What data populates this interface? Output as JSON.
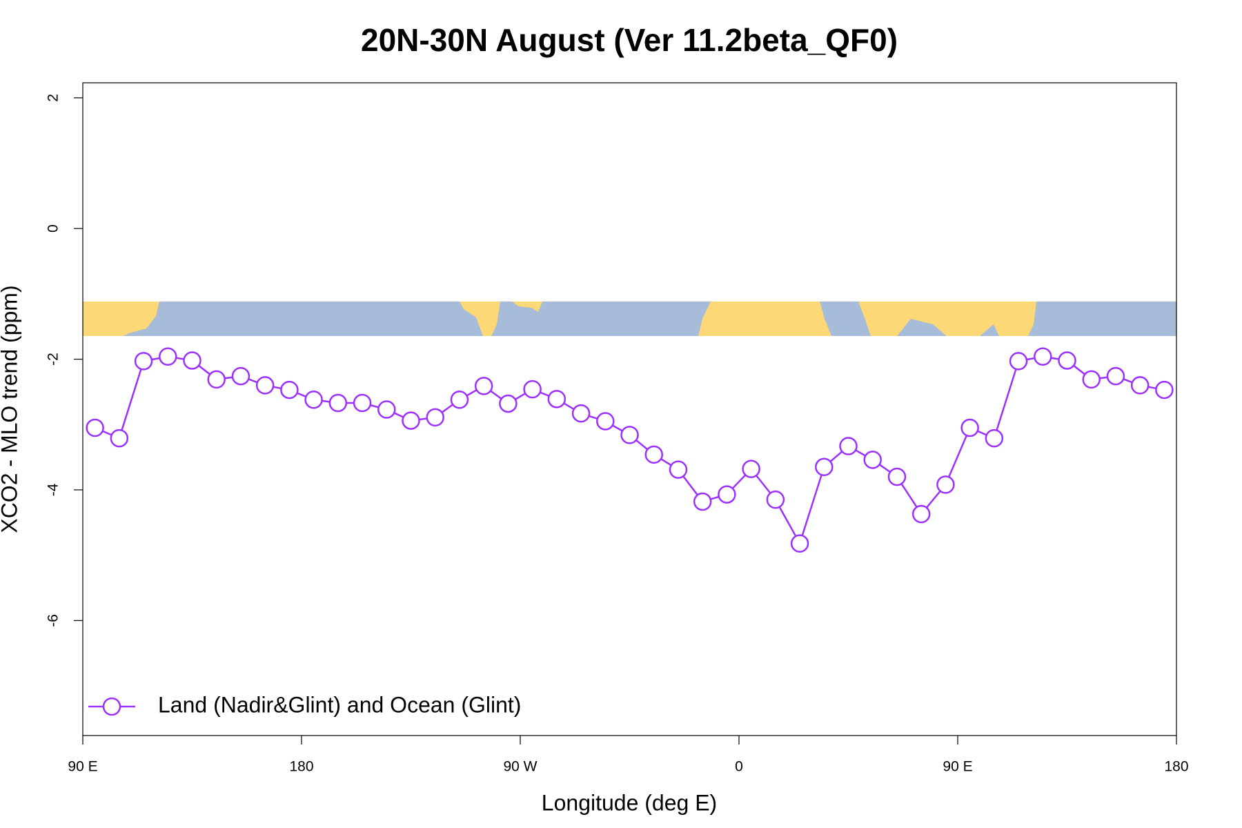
{
  "chart_data": {
    "type": "line",
    "title": "20N-30N August (Ver 11.2beta_QF0)",
    "x_label": "Longitude (deg E)",
    "y_label": "XCO2 - MLO trend (ppm)",
    "x": [
      95,
      105,
      115,
      125,
      135,
      145,
      155,
      165,
      175,
      185,
      195,
      205,
      215,
      225,
      235,
      245,
      255,
      265,
      275,
      285,
      295,
      305,
      315,
      325,
      335,
      345,
      355,
      365,
      375,
      385,
      395,
      405,
      415,
      425,
      435,
      445,
      455,
      465,
      475,
      485,
      495,
      505,
      515,
      525,
      535
    ],
    "series": [
      {
        "name": "Land (Nadir&Glint) and Ocean (Glint)",
        "color": "#9b30ff",
        "values": [
          -3.05,
          -3.21,
          -2.03,
          -1.96,
          -2.02,
          -2.31,
          -2.26,
          -2.4,
          -2.47,
          -2.62,
          -2.67,
          -2.67,
          -2.77,
          -2.94,
          -2.89,
          -2.62,
          -2.41,
          -2.68,
          -2.46,
          -2.61,
          -2.83,
          -2.95,
          -3.16,
          -3.46,
          -3.69,
          -4.18,
          -4.07,
          -3.68,
          -4.15,
          -4.82,
          -3.65,
          -3.33,
          -3.54,
          -3.8,
          -4.37,
          -3.92,
          -3.05,
          -3.21,
          -2.03,
          -1.96,
          -2.02,
          -2.31,
          -2.26,
          -2.4,
          -2.47
        ]
      }
    ],
    "xlim": [
      90,
      540
    ],
    "xticks": [
      {
        "value": 90,
        "label": "90 E"
      },
      180,
      {
        "value": 270,
        "label": "90 W"
      },
      {
        "value": 360,
        "label": "0"
      },
      {
        "value": 450,
        "label": "90 E"
      },
      {
        "value": 540,
        "label": "180"
      }
    ],
    "ylim": [
      -7.76,
      2.23
    ],
    "yticks": [
      -6,
      -4,
      -2,
      0,
      2
    ],
    "legend": "bottomleft"
  }
}
